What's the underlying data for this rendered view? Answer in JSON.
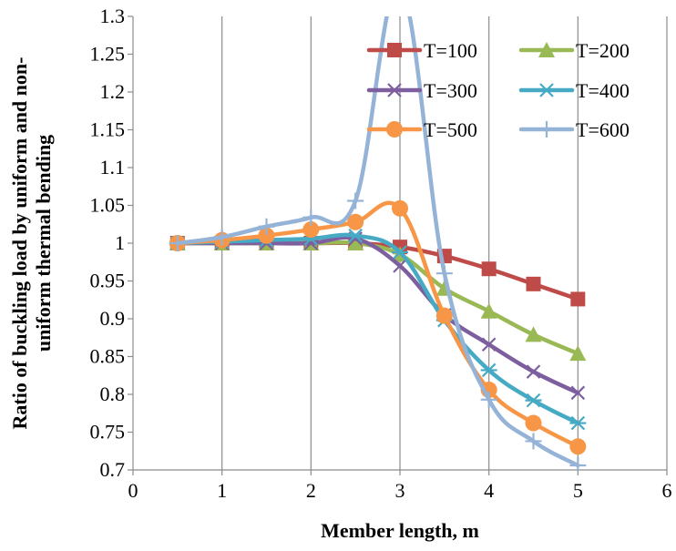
{
  "chart_data": {
    "type": "line",
    "title": "",
    "xlabel": "Member length, m",
    "ylabel_lines": [
      "Ratio of buckling load by uniform and non-",
      "uniform thermal bending"
    ],
    "xlim": [
      0,
      6
    ],
    "ylim": [
      0.7,
      1.3
    ],
    "xticks": [
      0,
      1,
      2,
      3,
      4,
      5,
      6
    ],
    "yticks": [
      0.7,
      0.75,
      0.8,
      0.85,
      0.9,
      0.95,
      1,
      1.05,
      1.1,
      1.15,
      1.2,
      1.25,
      1.3
    ],
    "ytick_labels": [
      "0.7",
      "0.75",
      "0.8",
      "0.85",
      "0.9",
      "0.95",
      "1",
      "1.05",
      "1.1",
      "1.15",
      "1.2",
      "1.25",
      "1.3"
    ],
    "grid": "vertical",
    "legend_position": "top-right",
    "x": [
      0.5,
      1,
      1.5,
      2,
      2.5,
      3,
      3.5,
      4,
      4.5,
      5
    ],
    "series": [
      {
        "name": "T=100",
        "color": "#be4b48",
        "marker": "square",
        "values": [
          1.0,
          1.0,
          1.0,
          1.0,
          1.0,
          0.995,
          0.983,
          0.966,
          0.946,
          0.926
        ]
      },
      {
        "name": "T=200",
        "color": "#98b954",
        "marker": "triangle",
        "values": [
          1.0,
          1.0,
          1.0,
          1.0,
          1.0,
          0.985,
          0.94,
          0.91,
          0.879,
          0.854
        ]
      },
      {
        "name": "T=300",
        "color": "#7d5fa0",
        "marker": "x",
        "values": [
          1.0,
          1.0,
          1.0,
          1.0,
          1.006,
          0.97,
          0.905,
          0.866,
          0.83,
          0.802
        ]
      },
      {
        "name": "T=400",
        "color": "#46aac5",
        "marker": "asterisk",
        "values": [
          1.0,
          1.002,
          1.004,
          1.006,
          1.01,
          0.988,
          0.898,
          0.832,
          0.792,
          0.762
        ]
      },
      {
        "name": "T=500",
        "color": "#f79646",
        "marker": "circle",
        "values": [
          1.0,
          1.004,
          1.01,
          1.018,
          1.028,
          1.046,
          0.904,
          0.806,
          0.762,
          0.731
        ]
      },
      {
        "name": "T=600",
        "color": "#95b3d7",
        "marker": "plus",
        "values": [
          1.0,
          1.008,
          1.022,
          1.034,
          1.056,
          1.34,
          0.96,
          0.793,
          0.738,
          0.706
        ]
      }
    ]
  }
}
